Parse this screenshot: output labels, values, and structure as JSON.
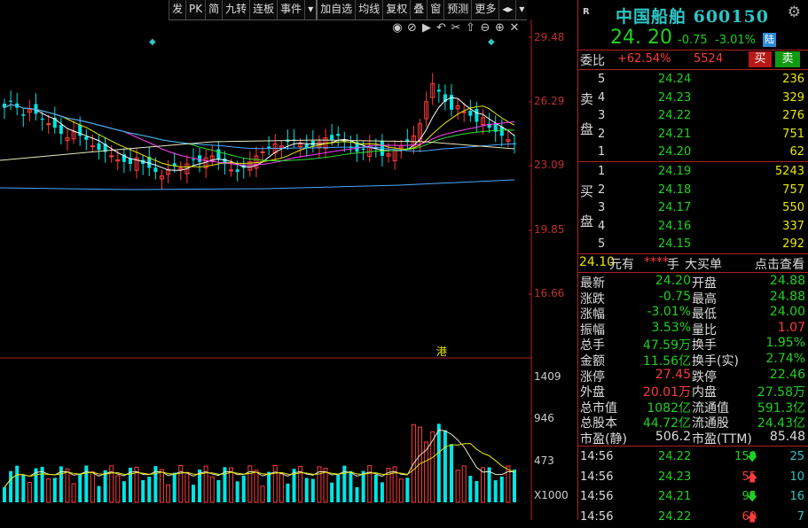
{
  "toolbar": {
    "items": [
      "发",
      "PK",
      "简",
      "九转",
      "连板",
      "事件",
      "▾",
      "加自选",
      "均线",
      "复权",
      "叠",
      "窗",
      "预测",
      "更多",
      "◂▸",
      "▾"
    ]
  },
  "chart_icons": [
    "eye-icon",
    "eye-off-icon",
    "play-icon",
    "undo-icon",
    "scissors-icon",
    "upload-icon",
    "zoom-out-icon",
    "zoom-in-icon",
    "close-icon"
  ],
  "price_axis": [
    "29.48",
    "26.29",
    "23.09",
    "19.85",
    "16.66"
  ],
  "volume_axis": [
    "1409",
    "946",
    "473"
  ],
  "volume_unit": "X1000",
  "gang_label": "港",
  "colors": {
    "up": "#ff3b3b",
    "down": "#00e5e5",
    "green": "#21d021",
    "accent": "#2ec5c5"
  },
  "stock": {
    "r_label": "R",
    "title": "中国船舶 600150",
    "price": "24. 20",
    "change": "-0.75",
    "change_pct": "-3.01%",
    "market_badge": "陆"
  },
  "weibi": {
    "label": "委比",
    "value": "+62.54%",
    "diff": "5524",
    "buy": "买",
    "sell": "卖"
  },
  "sell_label": [
    "卖",
    "盘"
  ],
  "buy_label": [
    "买",
    "盘"
  ],
  "sell_orders": [
    {
      "level": "5",
      "price": "24.24",
      "vol": "236"
    },
    {
      "level": "4",
      "price": "24.23",
      "vol": "329"
    },
    {
      "level": "3",
      "price": "24.22",
      "vol": "276"
    },
    {
      "level": "2",
      "price": "24.21",
      "vol": "751"
    },
    {
      "level": "1",
      "price": "24.20",
      "vol": "62"
    }
  ],
  "buy_orders": [
    {
      "level": "1",
      "price": "24.19",
      "vol": "5243"
    },
    {
      "level": "2",
      "price": "24.18",
      "vol": "757"
    },
    {
      "level": "3",
      "price": "24.17",
      "vol": "550"
    },
    {
      "level": "4",
      "price": "24.16",
      "vol": "337"
    },
    {
      "level": "5",
      "price": "24.15",
      "vol": "292"
    }
  ],
  "summary": {
    "price": "24.10",
    "has": "元有",
    "stars": "****",
    "hand": "手",
    "big": "大买单",
    "link": "点击查看"
  },
  "quote": [
    {
      "l": "最新",
      "v": "24.20",
      "vc": "green",
      "l2": "开盘",
      "v2": "24.88",
      "v2c": "green"
    },
    {
      "l": "涨跌",
      "v": "-0.75",
      "vc": "green",
      "l2": "最高",
      "v2": "24.88",
      "v2c": "green"
    },
    {
      "l": "涨幅",
      "v": "-3.01%",
      "vc": "green",
      "l2": "最低",
      "v2": "24.00",
      "v2c": "green"
    },
    {
      "l": "振幅",
      "v": "3.53%",
      "vc": "green",
      "l2": "量比",
      "v2": "1.07",
      "v2c": "red"
    },
    {
      "l": "总手",
      "v": "47.59万",
      "vc": "green",
      "l2": "换手",
      "v2": "1.95%",
      "v2c": "green"
    },
    {
      "l": "金额",
      "v": "11.56亿",
      "vc": "green",
      "l2": "换手(实)",
      "v2": "2.74%",
      "v2c": "green"
    },
    {
      "l": "涨停",
      "v": "27.45",
      "vc": "red",
      "l2": "跌停",
      "v2": "22.46",
      "v2c": "green"
    },
    {
      "l": "外盘",
      "v": "20.01万",
      "vc": "red",
      "l2": "内盘",
      "v2": "27.58万",
      "v2c": "green"
    },
    {
      "l": "总市值",
      "v": "1082亿",
      "vc": "green",
      "l2": "流通值",
      "v2": "591.3亿",
      "v2c": "green"
    },
    {
      "l": "总股本",
      "v": "44.72亿",
      "vc": "green",
      "l2": "流通股",
      "v2": "24.43亿",
      "v2c": "green"
    },
    {
      "l": "市盈(静)",
      "v": "506.2",
      "vc": "white",
      "l2": "市盈(TTM)",
      "v2": "85.48",
      "v2c": "white"
    }
  ],
  "ticks": [
    {
      "time": "14:56",
      "price": "24.22",
      "vol": "150",
      "dir": "down",
      "n": "25"
    },
    {
      "time": "14:56",
      "price": "24.23",
      "vol": "55",
      "dir": "up",
      "n": "10"
    },
    {
      "time": "14:56",
      "price": "24.21",
      "vol": "95",
      "dir": "down",
      "n": "16"
    },
    {
      "time": "14:56",
      "price": "24.22",
      "vol": "60",
      "dir": "up",
      "n": "7"
    }
  ]
}
